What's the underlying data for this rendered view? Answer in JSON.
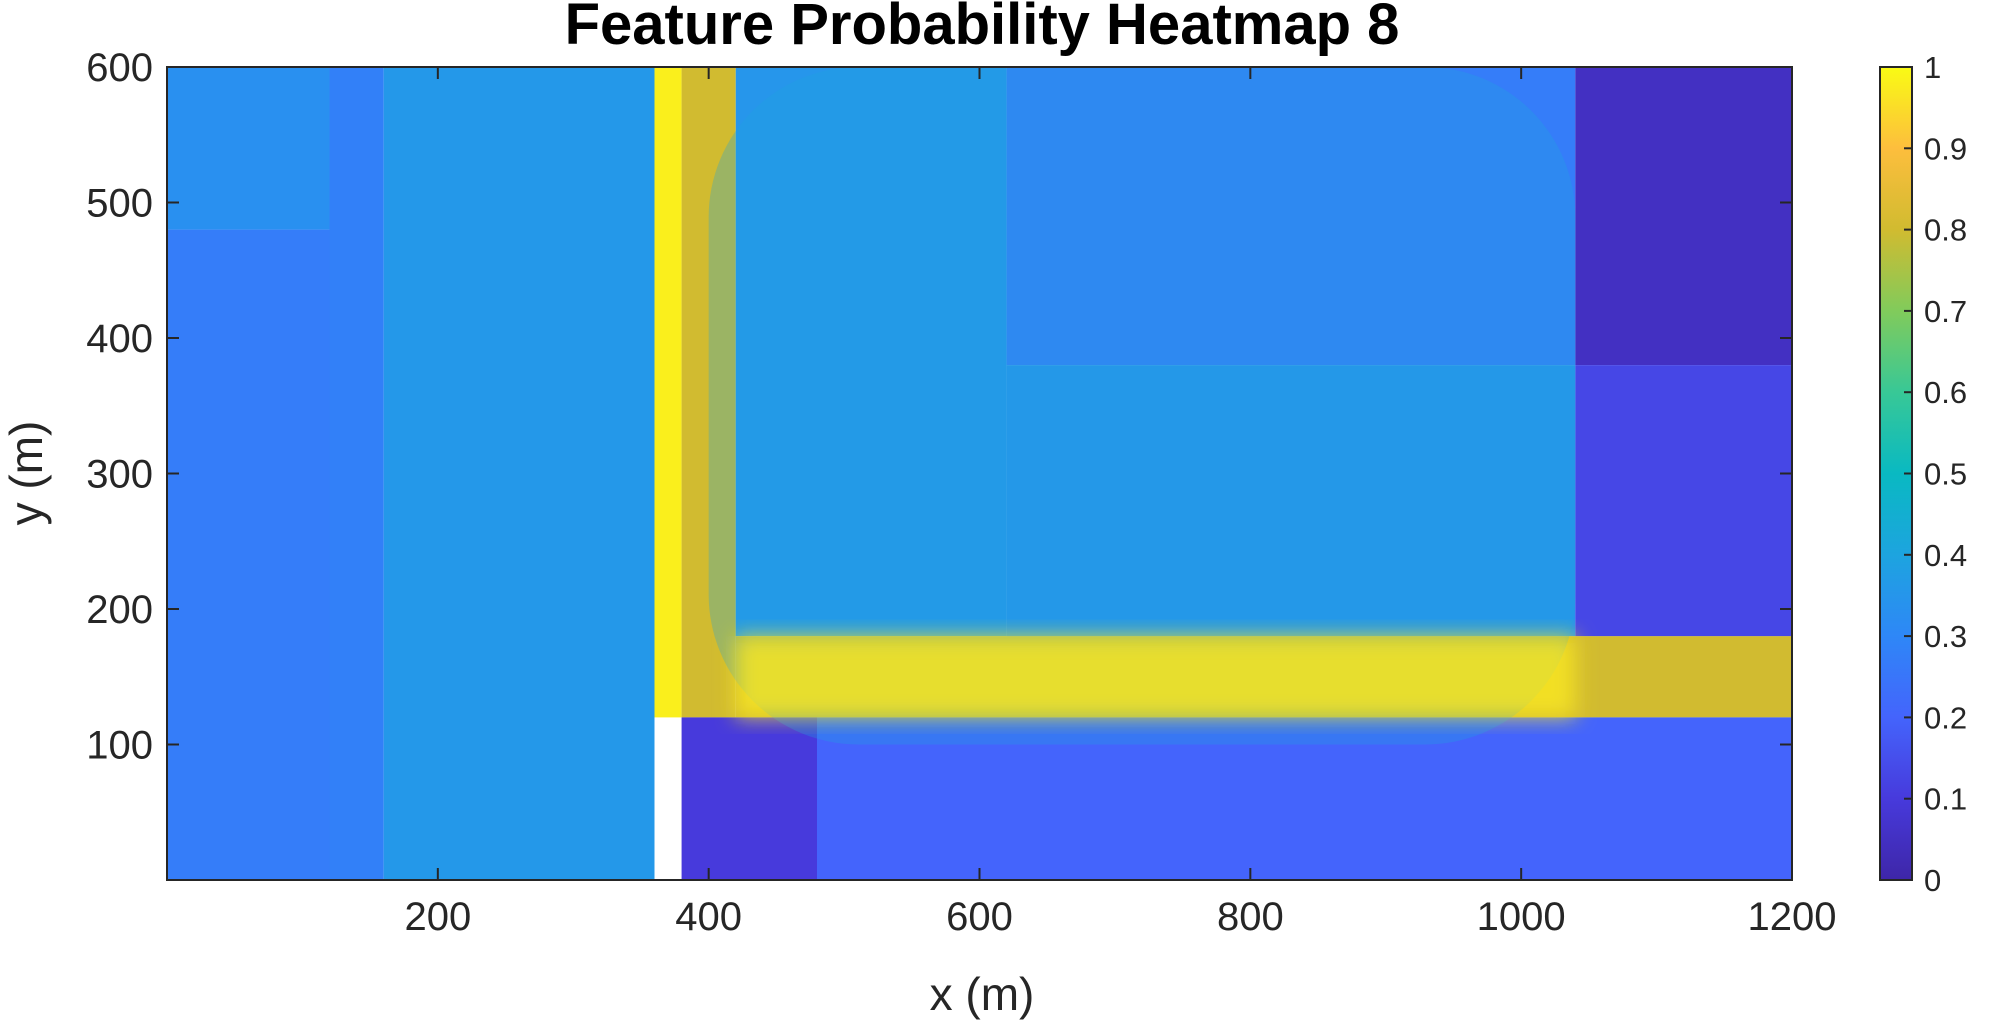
{
  "chart_data": {
    "type": "heatmap",
    "title": "Feature Probability Heatmap 8",
    "xlabel": "x (m)",
    "ylabel": "y (m)",
    "xlim": [
      0,
      1200
    ],
    "ylim": [
      0,
      600
    ],
    "x_ticks": [
      "200",
      "400",
      "600",
      "800",
      "1000",
      "1200"
    ],
    "y_ticks": [
      "100",
      "200",
      "300",
      "400",
      "500",
      "600"
    ],
    "colorbar": {
      "colormap": "parula",
      "range": [
        0,
        1
      ],
      "ticks": [
        "0",
        "0.1",
        "0.2",
        "0.3",
        "0.4",
        "0.5",
        "0.6",
        "0.7",
        "0.8",
        "0.9",
        "1"
      ]
    },
    "regions": [
      {
        "x": [
          0,
          120
        ],
        "y": [
          480,
          600
        ],
        "value": 0.33
      },
      {
        "x": [
          0,
          120
        ],
        "y": [
          0,
          480
        ],
        "value": 0.27
      },
      {
        "x": [
          120,
          160
        ],
        "y": [
          0,
          600
        ],
        "value": 0.28
      },
      {
        "x": [
          160,
          360
        ],
        "y": [
          0,
          600
        ],
        "value": 0.36
      },
      {
        "x": [
          360,
          380
        ],
        "y": [
          120,
          600
        ],
        "value": 0.98
      },
      {
        "x": [
          380,
          420
        ],
        "y": [
          120,
          600
        ],
        "value": 0.8
      },
      {
        "x": [
          420,
          620
        ],
        "y": [
          180,
          600
        ],
        "value": 0.35
      },
      {
        "x": [
          620,
          1040
        ],
        "y": [
          380,
          600
        ],
        "value": 0.27
      },
      {
        "x": [
          1040,
          1200
        ],
        "y": [
          380,
          600
        ],
        "value": 0.05
      },
      {
        "x": [
          420,
          1200
        ],
        "y": [
          120,
          180
        ],
        "value": 0.8
      },
      {
        "x": [
          620,
          1040
        ],
        "y": [
          180,
          380
        ],
        "value": 0.34
      },
      {
        "x": [
          1040,
          1200
        ],
        "y": [
          180,
          380
        ],
        "value": 0.13
      },
      {
        "x": [
          380,
          480
        ],
        "y": [
          0,
          120
        ],
        "value": 0.1
      },
      {
        "x": [
          480,
          1200
        ],
        "y": [
          0,
          120
        ],
        "value": 0.2
      }
    ],
    "overlays": [
      {
        "shape": "rounded-rect",
        "x": [
          400,
          1040
        ],
        "y": [
          100,
          600
        ],
        "value": 0.4,
        "opacity": 0.3
      },
      {
        "shape": "band",
        "x": [
          420,
          1040
        ],
        "y": [
          120,
          180
        ],
        "value": 0.97,
        "opacity": 0.8
      }
    ],
    "grid": false
  }
}
